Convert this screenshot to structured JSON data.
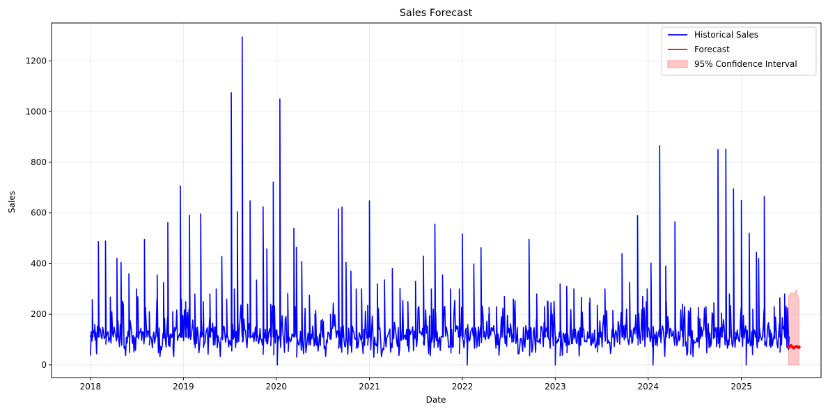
{
  "chart_data": {
    "type": "line",
    "title": "Sales Forecast",
    "xlabel": "Date",
    "ylabel": "Sales",
    "xlim": [
      "2017-08-01",
      "2025-11-10"
    ],
    "ylim": [
      -50,
      1350
    ],
    "x_ticks": [
      "2018",
      "2019",
      "2020",
      "2021",
      "2022",
      "2023",
      "2024",
      "2025"
    ],
    "y_ticks": [
      0,
      200,
      400,
      600,
      800,
      1000,
      1200
    ],
    "grid": true,
    "legend_position": "top-right",
    "colors": {
      "historical": "#0000ff",
      "forecast": "#ff0000",
      "confidence_fill": "#ff9999"
    },
    "series": [
      {
        "name": "Historical Sales",
        "style": "line",
        "baseline": 110,
        "x": [
          "2018-01-01",
          "2018-01-08",
          "2018-01-18",
          "2018-02-01",
          "2018-03-01",
          "2018-03-20",
          "2018-04-15",
          "2018-05-01",
          "2018-06-01",
          "2018-07-01",
          "2018-08-01",
          "2018-08-20",
          "2018-09-20",
          "2018-10-15",
          "2018-11-01",
          "2018-11-20",
          "2018-12-20",
          "2019-01-10",
          "2019-01-25",
          "2019-02-15",
          "2019-03-10",
          "2019-03-20",
          "2019-04-15",
          "2019-05-10",
          "2019-06-01",
          "2019-06-20",
          "2019-07-08",
          "2019-07-20",
          "2019-08-01",
          "2019-08-20",
          "2019-09-10",
          "2019-09-20",
          "2019-10-15",
          "2019-11-10",
          "2019-11-25",
          "2019-12-10",
          "2019-12-20",
          "2020-01-05",
          "2020-01-15",
          "2020-02-15",
          "2020-03-10",
          "2020-03-20",
          "2020-04-10",
          "2020-05-10",
          "2020-06-01",
          "2020-07-01",
          "2020-08-01",
          "2020-09-01",
          "2020-09-15",
          "2020-10-01",
          "2020-10-20",
          "2020-11-10",
          "2020-12-01",
          "2020-12-25",
          "2021-01-01",
          "2021-02-01",
          "2021-03-01",
          "2021-04-01",
          "2021-05-01",
          "2021-06-01",
          "2021-07-01",
          "2021-08-01",
          "2021-09-01",
          "2021-09-15",
          "2021-10-15",
          "2021-11-15",
          "2021-12-20",
          "2022-01-01",
          "2022-01-20",
          "2022-02-15",
          "2022-03-15",
          "2022-04-15",
          "2022-05-15",
          "2022-06-15",
          "2022-07-20",
          "2022-09-20",
          "2022-10-20",
          "2022-11-20",
          "2022-12-01",
          "2022-12-20",
          "2023-01-01",
          "2023-01-20",
          "2023-02-15",
          "2023-03-15",
          "2023-04-15",
          "2023-05-15",
          "2023-06-15",
          "2023-07-15",
          "2023-08-15",
          "2023-09-20",
          "2023-10-20",
          "2023-11-20",
          "2023-12-10",
          "2023-12-28",
          "2024-01-12",
          "2024-01-20",
          "2024-02-15",
          "2024-03-10",
          "2024-04-15",
          "2024-05-15",
          "2024-06-15",
          "2024-07-15",
          "2024-08-15",
          "2024-09-15",
          "2024-10-01",
          "2024-10-15",
          "2024-11-01",
          "2024-11-15",
          "2024-12-01",
          "2024-12-10",
          "2025-01-01",
          "2025-01-20",
          "2025-02-01",
          "2025-02-15",
          "2025-03-01",
          "2025-03-10",
          "2025-04-01",
          "2025-04-20",
          "2025-05-10",
          "2025-06-01",
          "2025-06-20",
          "2025-07-05"
        ],
        "values": [
          115,
          258,
          160,
          487,
          489,
          268,
          421,
          405,
          360,
          300,
          496,
          210,
          355,
          325,
          562,
          210,
          706,
          250,
          590,
          280,
          596,
          250,
          280,
          300,
          428,
          260,
          1075,
          300,
          605,
          1295,
          240,
          648,
          335,
          624,
          458,
          240,
          722,
          0,
          1050,
          282,
          540,
          465,
          408,
          275,
          200,
          180,
          200,
          615,
          623,
          405,
          370,
          300,
          300,
          235,
          648,
          320,
          336,
          380,
          302,
          250,
          330,
          430,
          300,
          556,
          355,
          300,
          300,
          517,
          0,
          398,
          463,
          200,
          230,
          270,
          260,
          496,
          280,
          230,
          250,
          200,
          0,
          320,
          310,
          300,
          160,
          245,
          235,
          300,
          215,
          440,
          325,
          589,
          270,
          300,
          402,
          0,
          866,
          390,
          565,
          240,
          225,
          190,
          230,
          245,
          850,
          205,
          852,
          280,
          695,
          100,
          650,
          0,
          520,
          220,
          445,
          420,
          665,
          150,
          230,
          265,
          280,
          60
        ]
      },
      {
        "name": "Forecast",
        "style": "line",
        "x": [
          "2025-07-05",
          "2025-07-15",
          "2025-07-25",
          "2025-08-05",
          "2025-08-15"
        ],
        "values": [
          70,
          75,
          68,
          72,
          70
        ]
      },
      {
        "name": "95% Confidence Interval",
        "style": "band",
        "x": [
          "2025-07-05",
          "2025-07-15",
          "2025-07-25",
          "2025-08-05",
          "2025-08-15"
        ],
        "lower": [
          0,
          0,
          0,
          0,
          0
        ],
        "upper": [
          270,
          285,
          280,
          295,
          255
        ]
      }
    ]
  }
}
